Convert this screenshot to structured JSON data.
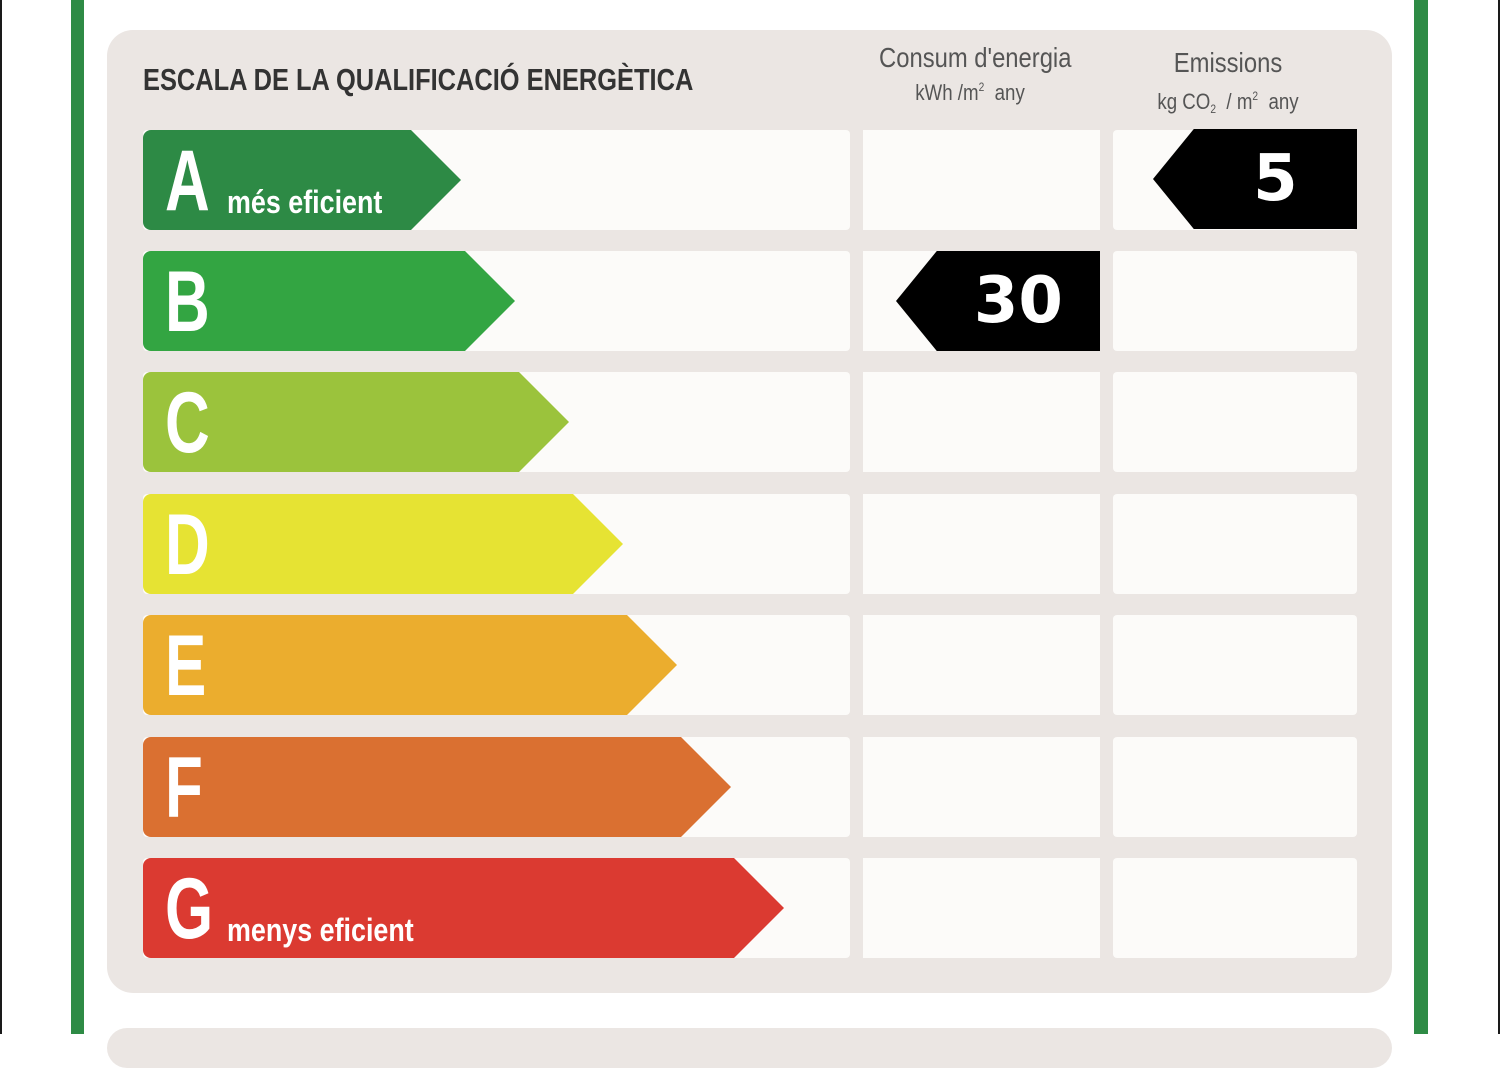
{
  "scale_title": "ESCALA DE LA QUALIFICACIÓ ENERGÈTICA",
  "energy_column": {
    "title": "Consum d'energia",
    "unit_main": "kWh /m",
    "unit_sup": "2",
    "unit_tail": "any"
  },
  "emissions_column": {
    "title": "Emissions",
    "unit_a": "kg CO",
    "unit_sub": "2",
    "unit_b": "/ m",
    "unit_sup": "2",
    "unit_tail": "any"
  },
  "classes": [
    {
      "letter": "A",
      "sublabel": "més eficient",
      "color": "#2d8a45"
    },
    {
      "letter": "B",
      "sublabel": "",
      "color": "#33a542"
    },
    {
      "letter": "C",
      "sublabel": "",
      "color": "#9bc33c"
    },
    {
      "letter": "D",
      "sublabel": "",
      "color": "#e6e333"
    },
    {
      "letter": "E",
      "sublabel": "",
      "color": "#ebad2e"
    },
    {
      "letter": "F",
      "sublabel": "",
      "color": "#da7031"
    },
    {
      "letter": "G",
      "sublabel": "menys eficient",
      "color": "#db3a31"
    }
  ],
  "energy_rating": {
    "class": "B",
    "value": "30"
  },
  "emissions_rating": {
    "class": "A",
    "value": "5"
  }
}
